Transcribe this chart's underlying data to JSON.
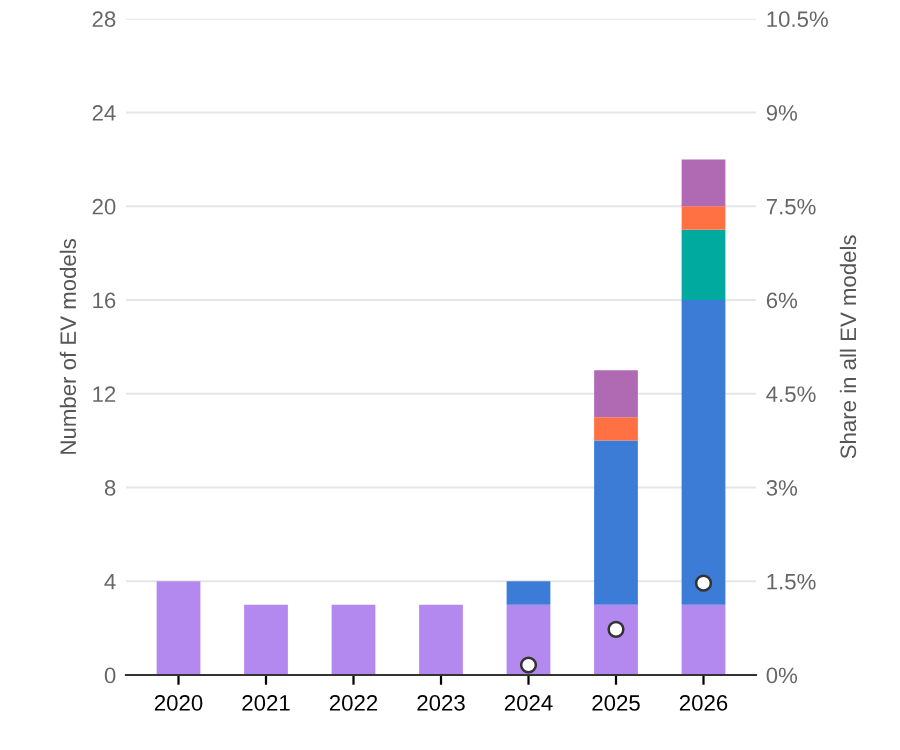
{
  "chart_data": {
    "type": "bar",
    "stacked": true,
    "categories": [
      "2020",
      "2021",
      "2022",
      "2023",
      "2024",
      "2025",
      "2026"
    ],
    "ylabel": "Number of EV models",
    "y2label": "Share in all EV models",
    "ylim": [
      0,
      28
    ],
    "yticks": [
      0,
      4,
      8,
      12,
      16,
      20,
      24,
      28
    ],
    "y2lim": [
      0,
      10.5
    ],
    "y2ticks": [
      {
        "value": 0,
        "label": "0%"
      },
      {
        "value": 1.5,
        "label": "1.5%"
      },
      {
        "value": 3,
        "label": "3%"
      },
      {
        "value": 4.5,
        "label": "4.5%"
      },
      {
        "value": 6,
        "label": "6%"
      },
      {
        "value": 7.5,
        "label": "7.5%"
      },
      {
        "value": 9,
        "label": "9%"
      },
      {
        "value": 10.5,
        "label": "10.5%"
      }
    ],
    "grid": "y",
    "series": [
      {
        "color": "#b388ef",
        "values": [
          4,
          3,
          3,
          3,
          3,
          3,
          3
        ]
      },
      {
        "color": "#3c7bd6",
        "values": [
          null,
          null,
          null,
          null,
          1,
          7,
          13
        ]
      },
      {
        "color": "#00aa9e",
        "values": [
          null,
          null,
          null,
          null,
          null,
          null,
          3
        ]
      },
      {
        "color": "#ff7043",
        "values": [
          null,
          null,
          null,
          null,
          null,
          1,
          1
        ]
      },
      {
        "color": "#b06ab3",
        "values": [
          null,
          null,
          null,
          null,
          null,
          2,
          2
        ]
      },
      {
        "type": "scatter",
        "axis": "y2",
        "color": "#ffffff",
        "marker": "circle",
        "values": [
          null,
          null,
          null,
          null,
          0.16,
          0.73,
          1.47
        ]
      }
    ]
  }
}
